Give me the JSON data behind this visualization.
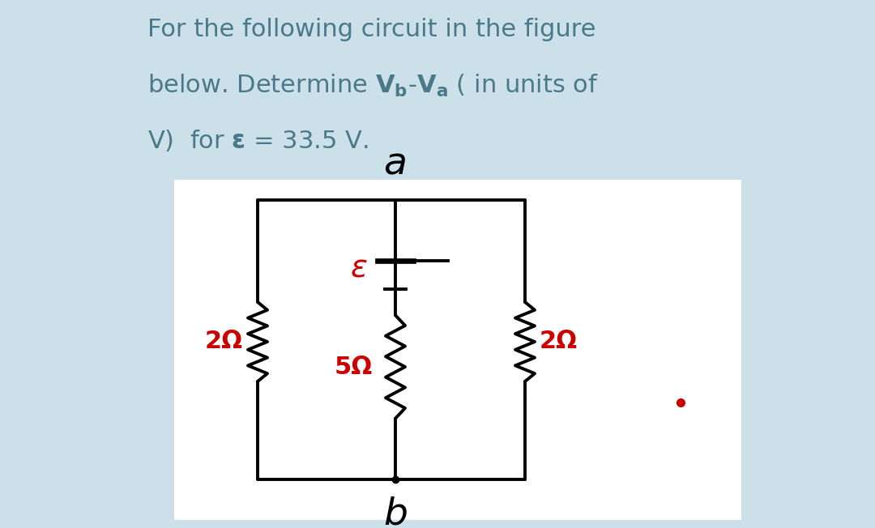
{
  "bg_outer": "#cce0ea",
  "bg_inner": "#ffffff",
  "text_color": "#4a7a8a",
  "red_color": "#cc0000",
  "black_color": "#000000",
  "node_a_label": "a",
  "node_b_label": "b",
  "eps_label": "ε",
  "r2_left_label": "2Ω",
  "r5_label": "5Ω",
  "r2_right_label": "2Ω",
  "font_size_title": 22,
  "font_size_labels": 20,
  "font_size_nodes": 28
}
